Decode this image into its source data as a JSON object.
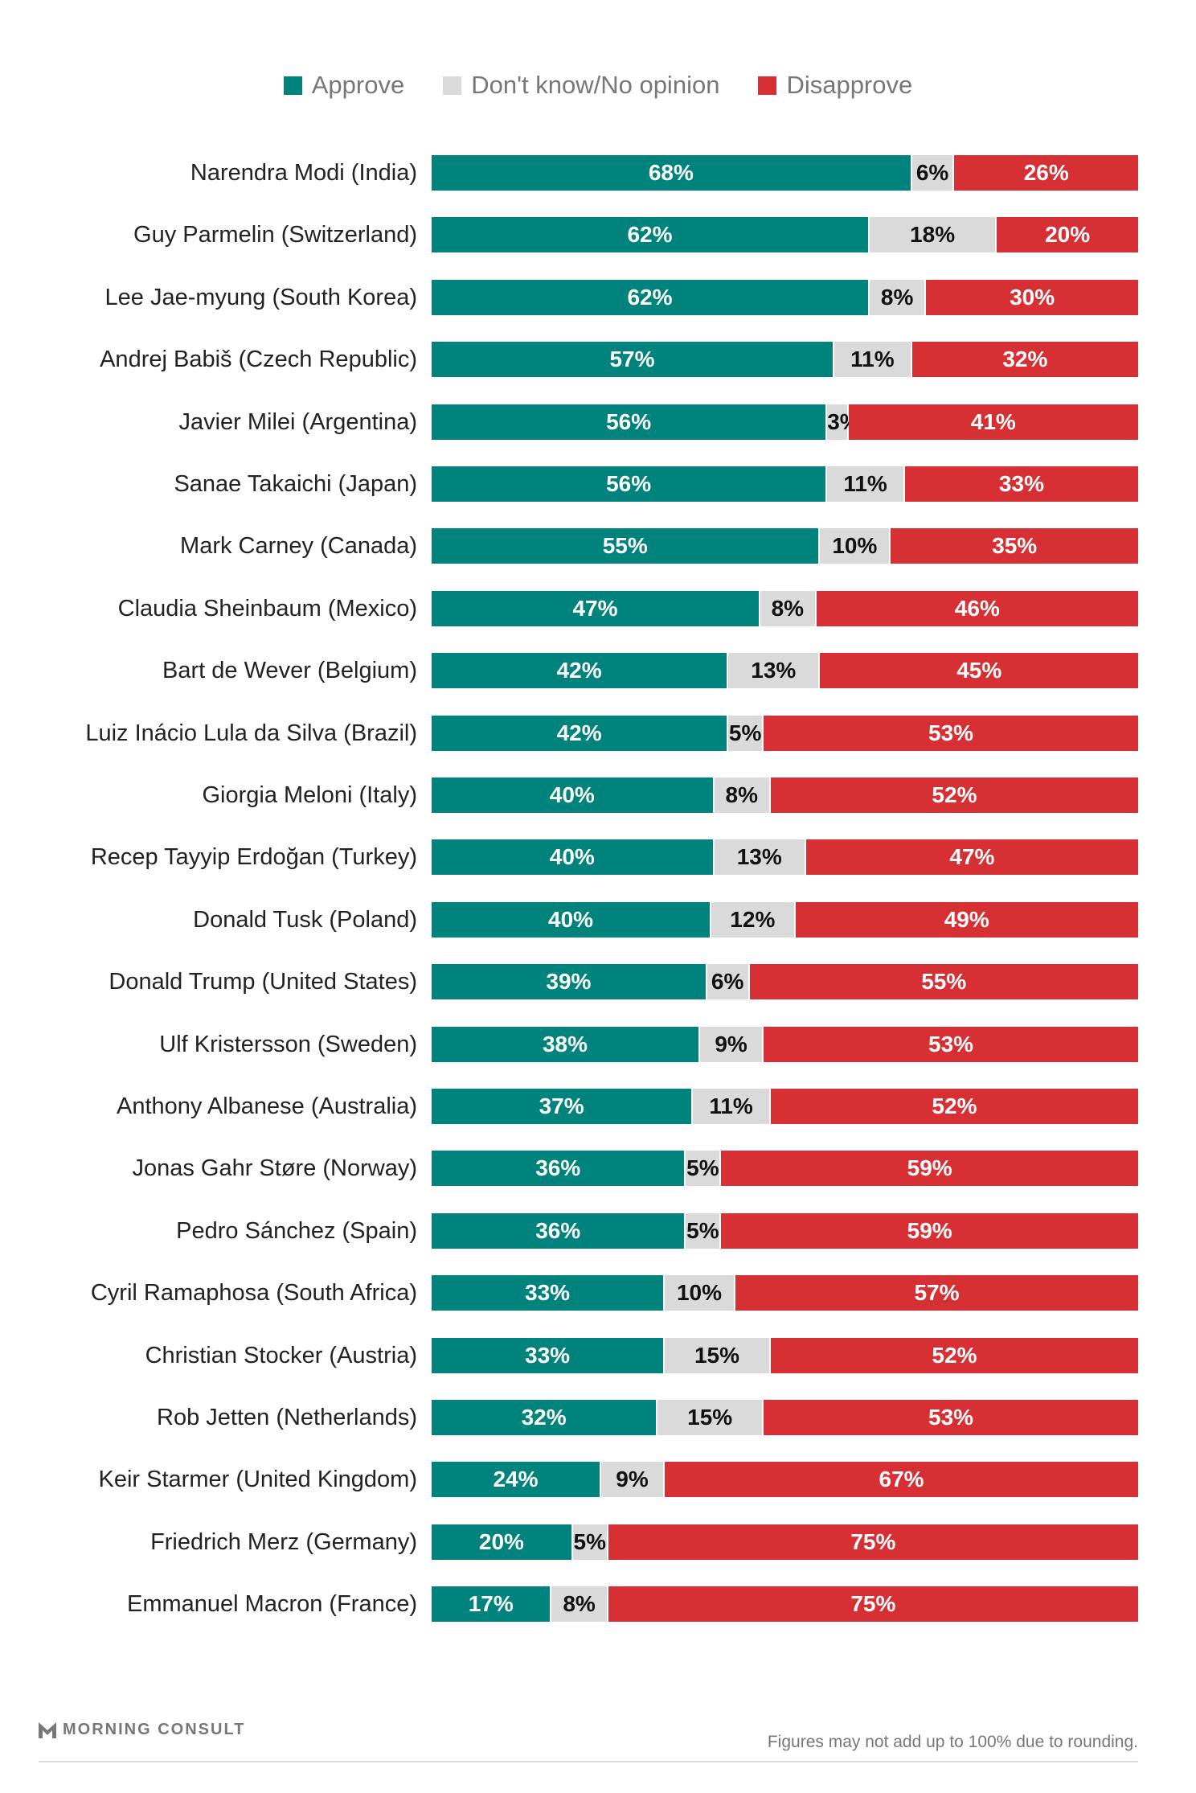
{
  "chart_data": {
    "type": "bar",
    "orientation": "horizontal",
    "stacked": true,
    "legend_position": "top",
    "grid": false,
    "series": [
      {
        "name": "Approve",
        "color": "#00837d"
      },
      {
        "name": "Don't know/No opinion",
        "color": "#d9dad9"
      },
      {
        "name": "Disapprove",
        "color": "#d63035"
      }
    ],
    "categories": [
      "Narendra Modi (India)",
      "Guy Parmelin (Switzerland)",
      "Lee Jae-myung (South Korea)",
      "Andrej Babiš (Czech Republic)",
      "Javier Milei (Argentina)",
      "Sanae Takaichi (Japan)",
      "Mark Carney (Canada)",
      "Claudia Sheinbaum (Mexico)",
      "Bart de Wever (Belgium)",
      "Luiz Inácio Lula da Silva (Brazil)",
      "Giorgia Meloni (Italy)",
      "Recep Tayyip Erdoğan (Turkey)",
      "Donald Tusk (Poland)",
      "Donald Trump (United States)",
      "Ulf Kristersson (Sweden)",
      "Anthony Albanese (Australia)",
      "Jonas Gahr Støre (Norway)",
      "Pedro Sánchez (Spain)",
      "Cyril Ramaphosa (South Africa)",
      "Christian Stocker (Austria)",
      "Rob Jetten (Netherlands)",
      "Keir Starmer (United Kingdom)",
      "Friedrich Merz (Germany)",
      "Emmanuel Macron (France)"
    ],
    "values": [
      [
        68,
        6,
        26
      ],
      [
        62,
        18,
        20
      ],
      [
        62,
        8,
        30
      ],
      [
        57,
        11,
        32
      ],
      [
        56,
        3,
        41
      ],
      [
        56,
        11,
        33
      ],
      [
        55,
        10,
        35
      ],
      [
        47,
        8,
        46
      ],
      [
        42,
        13,
        45
      ],
      [
        42,
        5,
        53
      ],
      [
        40,
        8,
        52
      ],
      [
        40,
        13,
        47
      ],
      [
        40,
        12,
        49
      ],
      [
        39,
        6,
        55
      ],
      [
        38,
        9,
        53
      ],
      [
        37,
        11,
        52
      ],
      [
        36,
        5,
        59
      ],
      [
        36,
        5,
        59
      ],
      [
        33,
        10,
        57
      ],
      [
        33,
        15,
        52
      ],
      [
        32,
        15,
        53
      ],
      [
        24,
        9,
        67
      ],
      [
        20,
        5,
        75
      ],
      [
        17,
        8,
        75
      ]
    ],
    "value_suffix": "%"
  },
  "footer": {
    "brand": "MORNING CONSULT",
    "note": "Figures may not add up to 100% due to rounding."
  }
}
